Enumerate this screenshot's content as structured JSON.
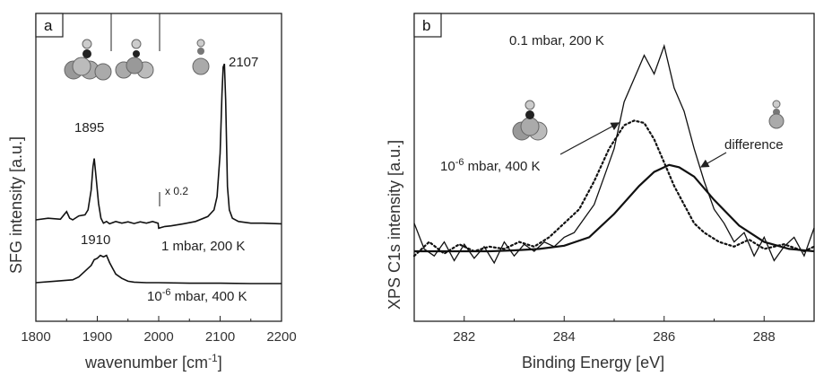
{
  "chart_data": [
    {
      "panel_label": "a",
      "type": "line",
      "xlabel": "wavenumber [cm",
      "xlabel_sup": "-1",
      "xlabel_close": "]",
      "ylabel": "SFG intensity [a.u.]",
      "xlim": [
        1800,
        2200
      ],
      "xticks": [
        "1800",
        "1900",
        "2000",
        "2100",
        "2200"
      ],
      "scale_marker": "x 0.2",
      "series": [
        {
          "name": "1 mbar, 200 K",
          "label_main": "1 mbar, 200 K",
          "x": [
            1800,
            1820,
            1840,
            1850,
            1855,
            1860,
            1870,
            1880,
            1885,
            1890,
            1893,
            1895,
            1898,
            1902,
            1906,
            1910,
            1915,
            1920,
            1930,
            1940,
            1950,
            1960,
            1970,
            1980,
            1990,
            1999,
            2000,
            2010,
            2020,
            2040,
            2060,
            2080,
            2090,
            2095,
            2100,
            2103,
            2105,
            2107,
            2109,
            2112,
            2115,
            2120,
            2130,
            2150,
            2170,
            2200
          ],
          "y": [
            0.0,
            0.05,
            0.02,
            0.25,
            0.05,
            0.0,
            0.12,
            0.15,
            0.3,
            0.9,
            1.6,
            1.85,
            1.3,
            0.5,
            0.05,
            -0.1,
            -0.05,
            -0.12,
            -0.05,
            -0.1,
            -0.06,
            -0.11,
            -0.06,
            -0.1,
            -0.05,
            -0.1,
            -0.25,
            -0.2,
            -0.18,
            -0.12,
            -0.05,
            0.1,
            0.3,
            0.7,
            2.0,
            3.8,
            4.6,
            4.7,
            3.6,
            1.0,
            0.3,
            0.05,
            -0.05,
            -0.1,
            -0.1,
            -0.12
          ]
        },
        {
          "name": "10-6 mbar, 400 K",
          "label_pre": "10",
          "label_sup": "-6",
          "label_post": " mbar, 400 K",
          "x": [
            1800,
            1830,
            1860,
            1870,
            1880,
            1890,
            1895,
            1900,
            1905,
            1910,
            1915,
            1920,
            1925,
            1930,
            1940,
            1950,
            1960,
            1980,
            2000,
            2050,
            2100,
            2150,
            2200
          ],
          "y": [
            0.0,
            0.05,
            0.1,
            0.2,
            0.4,
            0.6,
            0.8,
            0.85,
            0.95,
            0.9,
            0.95,
            0.7,
            0.5,
            0.3,
            0.15,
            0.05,
            0.02,
            0.0,
            0.0,
            -0.02,
            -0.02,
            -0.03,
            -0.03
          ]
        }
      ],
      "annotations": [
        "1895",
        "2107",
        "1910"
      ]
    },
    {
      "panel_label": "b",
      "type": "line",
      "xlabel": "Binding Energy [eV]",
      "ylabel": "XPS C1s intensity [a.u.]",
      "xlim": [
        281,
        289
      ],
      "xticks": [
        "282",
        "284",
        "286",
        "288"
      ],
      "series": [
        {
          "name": "0.1 mbar, 200 K",
          "x": [
            281,
            281.2,
            281.4,
            281.6,
            281.8,
            282,
            282.2,
            282.4,
            282.6,
            282.8,
            283,
            283.2,
            283.4,
            283.6,
            283.8,
            284,
            284.2,
            284.4,
            284.6,
            284.8,
            285,
            285.2,
            285.4,
            285.6,
            285.8,
            286,
            286.2,
            286.4,
            286.6,
            286.8,
            287,
            287.2,
            287.4,
            287.6,
            287.8,
            288,
            288.2,
            288.4,
            288.6,
            288.8,
            289
          ],
          "y": [
            0.6,
            0.05,
            -0.1,
            0.2,
            -0.2,
            0.15,
            -0.15,
            0.1,
            -0.25,
            0.2,
            -0.1,
            0.15,
            0.0,
            0.2,
            0.1,
            0.3,
            0.4,
            0.7,
            1.0,
            1.6,
            2.2,
            3.2,
            3.7,
            4.2,
            3.8,
            4.4,
            3.5,
            3.0,
            2.2,
            1.5,
            0.9,
            0.6,
            0.2,
            0.4,
            -0.1,
            0.3,
            -0.2,
            0.1,
            0.3,
            -0.1,
            0.5
          ]
        },
        {
          "name": "10-6 mbar, 400 K",
          "x": [
            281,
            281.3,
            281.6,
            281.9,
            282.2,
            282.5,
            282.8,
            283.1,
            283.4,
            283.7,
            284,
            284.3,
            284.6,
            284.9,
            285.2,
            285.4,
            285.6,
            285.8,
            286,
            286.2,
            286.4,
            286.6,
            286.8,
            287.1,
            287.4,
            287.7,
            288,
            288.4,
            288.8,
            289
          ],
          "y": [
            -0.1,
            0.2,
            -0.05,
            0.15,
            0.0,
            0.1,
            0.05,
            0.2,
            0.1,
            0.3,
            0.6,
            0.9,
            1.5,
            2.2,
            2.7,
            2.8,
            2.75,
            2.4,
            1.9,
            1.4,
            1.0,
            0.6,
            0.4,
            0.2,
            0.1,
            0.25,
            0.05,
            0.15,
            0.0,
            0.1
          ]
        },
        {
          "name": "difference",
          "x": [
            281,
            281.5,
            282,
            282.5,
            283,
            283.5,
            284,
            284.5,
            285,
            285.5,
            285.8,
            286.1,
            286.3,
            286.6,
            287,
            287.5,
            288,
            288.5,
            289
          ],
          "y": [
            0.0,
            0.0,
            0.0,
            0.0,
            0.02,
            0.05,
            0.12,
            0.3,
            0.8,
            1.4,
            1.7,
            1.85,
            1.8,
            1.6,
            1.1,
            0.55,
            0.2,
            0.05,
            0.0
          ]
        }
      ],
      "annotations": [
        "difference"
      ]
    }
  ]
}
